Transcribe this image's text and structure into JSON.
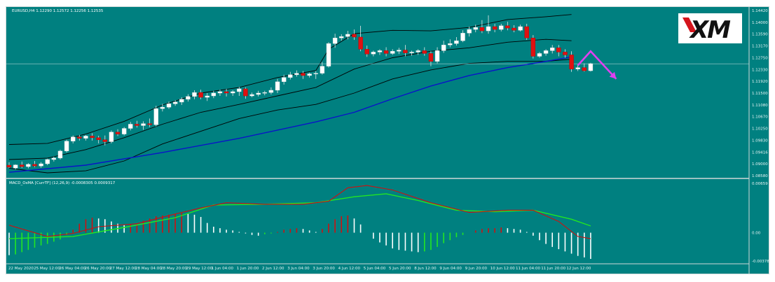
{
  "header": {
    "symbol_info": "EURUSD,H4  1.12290 1.12572 1.12256 1.12535",
    "indicator_info": "MACD_OsMA [CurrTF] (12,26,9) -0.0008305 0.0009317"
  },
  "logo": {
    "text": "XM"
  },
  "current_price": "1.12535",
  "colors": {
    "background": "#008080",
    "bull_candle": "#ffffff",
    "bear_candle": "#e01010",
    "bollinger": "#000000",
    "ma_line": "#0a14c8",
    "macd_red": "#d01010",
    "signal_green": "#22e622",
    "arrow": "#e040f0"
  },
  "chart_data": [
    {
      "type": "candlestick",
      "title": "EURUSD,H4  1.12290 1.12572 1.12256 1.12535",
      "ylim": [
        1.0858,
        1.1442
      ],
      "yticks": [
        "1.14420",
        "1.14000",
        "1.13590",
        "1.13170",
        "1.12750",
        "1.12330",
        "1.11920",
        "1.11500",
        "1.11080",
        "1.10670",
        "1.10250",
        "1.09830",
        "1.09416",
        "1.09000",
        "1.08580"
      ],
      "xticks": [
        "22 May 2020",
        "25 May 12:00",
        "26 May 04:00",
        "26 May 20:00",
        "27 May 12:00",
        "28 May 04:00",
        "28 May 20:00",
        "29 May 12:00",
        "1 Jun 04:00",
        "1 Jun 20:00",
        "2 Jun 12:00",
        "3 Jun 04:00",
        "3 Jun 20:00",
        "4 Jun 12:00",
        "5 Jun 04:00",
        "5 Jun 20:00",
        "8 Jun 12:00",
        "9 Jun 04:00",
        "9 Jun 20:00",
        "10 Jun 12:00",
        "11 Jun 04:00",
        "11 Jun 20:00",
        "12 Jun 12:00"
      ],
      "candles": [
        [
          1.0895,
          1.0905,
          1.0888,
          1.0885
        ],
        [
          1.0885,
          1.0898,
          1.0896,
          1.088
        ],
        [
          1.0896,
          1.0908,
          1.089,
          1.0885
        ],
        [
          1.089,
          1.0902,
          1.0898,
          1.0884
        ],
        [
          1.0898,
          1.091,
          1.0892,
          1.0888
        ],
        [
          1.0892,
          1.0906,
          1.09,
          1.0886
        ],
        [
          1.09,
          1.0918,
          1.0915,
          1.0895
        ],
        [
          1.0915,
          1.0925,
          1.092,
          1.0908
        ],
        [
          1.092,
          1.095,
          1.0945,
          1.0915
        ],
        [
          1.0945,
          1.0985,
          1.098,
          1.094
        ],
        [
          1.098,
          1.1,
          1.0995,
          1.0972
        ],
        [
          1.0995,
          1.1002,
          1.099,
          1.0982
        ],
        [
          1.099,
          1.1002,
          1.0998,
          1.0982
        ],
        [
          1.0998,
          1.1008,
          1.0992,
          1.0982
        ],
        [
          1.0992,
          1.0999,
          1.0985,
          1.0972
        ],
        [
          1.0985,
          1.1,
          1.0978,
          1.0965
        ],
        [
          1.0978,
          1.1018,
          1.1012,
          1.0972
        ],
        [
          1.1012,
          1.1022,
          1.1005,
          1.0998
        ],
        [
          1.1005,
          1.103,
          1.1025,
          1.1
        ],
        [
          1.1025,
          1.1048,
          1.104,
          1.1018
        ],
        [
          1.104,
          1.1052,
          1.1035,
          1.1028
        ],
        [
          1.1035,
          1.105,
          1.1042,
          1.102
        ],
        [
          1.1042,
          1.106,
          1.1038,
          1.103
        ],
        [
          1.1038,
          1.1105,
          1.1095,
          1.1032
        ],
        [
          1.1095,
          1.1112,
          1.11,
          1.1085
        ],
        [
          1.11,
          1.112,
          1.1112,
          1.1094
        ],
        [
          1.1112,
          1.1125,
          1.1118,
          1.1105
        ],
        [
          1.1118,
          1.1135,
          1.1128,
          1.1108
        ],
        [
          1.1128,
          1.1146,
          1.1138,
          1.112
        ],
        [
          1.1138,
          1.116,
          1.1152,
          1.1128
        ],
        [
          1.1152,
          1.1162,
          1.1135,
          1.1128
        ],
        [
          1.1135,
          1.115,
          1.114,
          1.1122
        ],
        [
          1.114,
          1.1158,
          1.115,
          1.1132
        ],
        [
          1.115,
          1.1162,
          1.1155,
          1.114
        ],
        [
          1.1155,
          1.1165,
          1.115,
          1.1138
        ],
        [
          1.115,
          1.116,
          1.1155,
          1.114
        ],
        [
          1.1155,
          1.1172,
          1.1165,
          1.114
        ],
        [
          1.1165,
          1.117,
          1.114,
          1.113
        ],
        [
          1.114,
          1.1152,
          1.1145,
          1.1135
        ],
        [
          1.1145,
          1.1158,
          1.115,
          1.1138
        ],
        [
          1.115,
          1.1158,
          1.1152,
          1.1142
        ],
        [
          1.1152,
          1.117,
          1.116,
          1.1145
        ],
        [
          1.116,
          1.12,
          1.119,
          1.115
        ],
        [
          1.119,
          1.1215,
          1.1205,
          1.118
        ],
        [
          1.1205,
          1.1225,
          1.1215,
          1.1198
        ],
        [
          1.1215,
          1.123,
          1.122,
          1.1208
        ],
        [
          1.122,
          1.1228,
          1.1212,
          1.12
        ],
        [
          1.1212,
          1.1222,
          1.1218,
          1.1205
        ],
        [
          1.1218,
          1.1228,
          1.122,
          1.12
        ],
        [
          1.122,
          1.126,
          1.1245,
          1.1215
        ],
        [
          1.1245,
          1.133,
          1.1325,
          1.124
        ],
        [
          1.1325,
          1.136,
          1.1345,
          1.131
        ],
        [
          1.1345,
          1.1358,
          1.135,
          1.1335
        ],
        [
          1.135,
          1.137,
          1.1358,
          1.134
        ],
        [
          1.1358,
          1.1375,
          1.1348,
          1.1338
        ],
        [
          1.1348,
          1.1388,
          1.1305,
          1.1298
        ],
        [
          1.1305,
          1.1318,
          1.1288,
          1.1278
        ],
        [
          1.1288,
          1.13,
          1.1295,
          1.128
        ],
        [
          1.1295,
          1.1305,
          1.13,
          1.1285
        ],
        [
          1.13,
          1.1312,
          1.129,
          1.128
        ],
        [
          1.129,
          1.1305,
          1.1298,
          1.1285
        ],
        [
          1.1298,
          1.131,
          1.1302,
          1.1288
        ],
        [
          1.1302,
          1.132,
          1.1292,
          1.128
        ],
        [
          1.1292,
          1.13,
          1.1295,
          1.1282
        ],
        [
          1.1295,
          1.1305,
          1.13,
          1.1285
        ],
        [
          1.13,
          1.1312,
          1.129,
          1.1282
        ],
        [
          1.129,
          1.1298,
          1.1262,
          1.1245
        ],
        [
          1.1262,
          1.1312,
          1.13,
          1.1255
        ],
        [
          1.13,
          1.1335,
          1.132,
          1.1292
        ],
        [
          1.132,
          1.134,
          1.1325,
          1.1312
        ],
        [
          1.1325,
          1.1348,
          1.1335,
          1.1318
        ],
        [
          1.1335,
          1.1372,
          1.1362,
          1.133
        ],
        [
          1.1362,
          1.1385,
          1.1375,
          1.135
        ],
        [
          1.1375,
          1.1392,
          1.1382,
          1.1365
        ],
        [
          1.1382,
          1.1408,
          1.137,
          1.1362
        ],
        [
          1.137,
          1.1425,
          1.1385,
          1.136
        ],
        [
          1.1385,
          1.1395,
          1.1375,
          1.1365
        ],
        [
          1.1375,
          1.1395,
          1.1388,
          1.1368
        ],
        [
          1.1388,
          1.1402,
          1.138,
          1.1372
        ],
        [
          1.138,
          1.139,
          1.1372,
          1.1365
        ],
        [
          1.1372,
          1.1392,
          1.1385,
          1.1368
        ],
        [
          1.1385,
          1.1395,
          1.1345,
          1.1338
        ],
        [
          1.1345,
          1.1355,
          1.128,
          1.1272
        ],
        [
          1.128,
          1.1295,
          1.129,
          1.1275
        ],
        [
          1.129,
          1.1305,
          1.13,
          1.1282
        ],
        [
          1.13,
          1.132,
          1.131,
          1.129
        ],
        [
          1.131,
          1.132,
          1.1295,
          1.128
        ],
        [
          1.1295,
          1.1305,
          1.1285,
          1.1275
        ],
        [
          1.1285,
          1.1298,
          1.1235,
          1.1225
        ],
        [
          1.1235,
          1.125,
          1.124,
          1.1228
        ],
        [
          1.124,
          1.1255,
          1.1229,
          1.1226
        ],
        [
          1.1229,
          1.1257,
          1.1254,
          1.1226
        ]
      ],
      "bollinger_upper": [
        [
          0,
          1.0968
        ],
        [
          6,
          1.0972
        ],
        [
          12,
          1.1005
        ],
        [
          18,
          1.105
        ],
        [
          24,
          1.1108
        ],
        [
          30,
          1.115
        ],
        [
          36,
          1.117
        ],
        [
          42,
          1.1205
        ],
        [
          48,
          1.123
        ],
        [
          50,
          1.1305
        ],
        [
          54,
          1.136
        ],
        [
          60,
          1.1372
        ],
        [
          66,
          1.137
        ],
        [
          72,
          1.1382
        ],
        [
          78,
          1.141
        ],
        [
          84,
          1.142
        ],
        [
          88,
          1.1428
        ]
      ],
      "bollinger_middle": [
        [
          0,
          1.0915
        ],
        [
          6,
          1.092
        ],
        [
          12,
          1.095
        ],
        [
          18,
          1.0992
        ],
        [
          24,
          1.104
        ],
        [
          30,
          1.1082
        ],
        [
          36,
          1.111
        ],
        [
          42,
          1.114
        ],
        [
          48,
          1.117
        ],
        [
          54,
          1.1235
        ],
        [
          60,
          1.1275
        ],
        [
          66,
          1.1298
        ],
        [
          72,
          1.131
        ],
        [
          78,
          1.133
        ],
        [
          84,
          1.134
        ],
        [
          88,
          1.1335
        ]
      ],
      "bollinger_lower": [
        [
          0,
          1.0884
        ],
        [
          6,
          1.0868
        ],
        [
          12,
          1.0875
        ],
        [
          18,
          1.091
        ],
        [
          24,
          1.097
        ],
        [
          30,
          1.1015
        ],
        [
          36,
          1.106
        ],
        [
          42,
          1.109
        ],
        [
          48,
          1.111
        ],
        [
          54,
          1.115
        ],
        [
          60,
          1.12
        ],
        [
          66,
          1.1232
        ],
        [
          72,
          1.1255
        ],
        [
          78,
          1.1262
        ],
        [
          84,
          1.1262
        ],
        [
          88,
          1.127
        ]
      ],
      "moving_average": [
        [
          0,
          1.087
        ],
        [
          12,
          1.0895
        ],
        [
          24,
          1.094
        ],
        [
          36,
          1.099
        ],
        [
          48,
          1.1048
        ],
        [
          54,
          1.1082
        ],
        [
          60,
          1.113
        ],
        [
          66,
          1.1175
        ],
        [
          72,
          1.1212
        ],
        [
          78,
          1.124
        ],
        [
          84,
          1.1262
        ],
        [
          88,
          1.1278
        ]
      ],
      "forecast_arrow": [
        [
          89,
          1.1248
        ],
        [
          91,
          1.1298
        ],
        [
          95,
          1.12
        ]
      ]
    },
    {
      "type": "histogram+line",
      "title": "MACD_OsMA [CurrTF] (12,26,9) -0.0008305 0.0009317",
      "ylim": [
        -0.00378,
        0.00659
      ],
      "yticks": [
        "0.00659",
        "0.00",
        "-0.00378"
      ],
      "histogram": [
        -0.003,
        -0.0029,
        -0.0026,
        -0.0023,
        -0.002,
        -0.0017,
        -0.0015,
        -0.0012,
        -0.0009,
        -0.0003,
        0.0004,
        0.0012,
        0.0018,
        0.002,
        0.0019,
        0.0018,
        0.0015,
        0.0012,
        0.001,
        0.0011,
        0.0012,
        0.0016,
        0.0019,
        0.0022,
        0.0023,
        0.0024,
        0.0025,
        0.0026,
        0.0025,
        0.0024,
        0.0021,
        0.0013,
        0.0008,
        0.0006,
        0.0004,
        0.0003,
        0.0001,
        -0.0001,
        -0.0003,
        -0.0004,
        -0.0002,
        -0.0001,
        0.0001,
        0.0004,
        0.0005,
        0.0006,
        0.0005,
        0.0003,
        0.0001,
        0.0005,
        0.0012,
        0.0018,
        0.0022,
        0.0023,
        0.0019,
        0.0011,
        0.0,
        -0.0008,
        -0.0013,
        -0.0017,
        -0.0021,
        -0.0023,
        -0.0024,
        -0.0025,
        -0.0026,
        -0.0025,
        -0.0023,
        -0.0019,
        -0.0014,
        -0.001,
        -0.0006,
        -0.0003,
        0.0,
        0.0003,
        0.0005,
        0.0006,
        0.0006,
        0.0007,
        0.0006,
        0.0005,
        0.0004,
        0.0001,
        -0.0004,
        -0.001,
        -0.0015,
        -0.0019,
        -0.0022,
        -0.0025,
        -0.0028,
        -0.0031,
        -0.0033,
        -0.0035
      ],
      "macd_line": [
        [
          0,
          0.001
        ],
        [
          6,
          -0.0005
        ],
        [
          10,
          -0.0001
        ],
        [
          14,
          0.0008
        ],
        [
          20,
          0.0012
        ],
        [
          26,
          0.0025
        ],
        [
          30,
          0.0033
        ],
        [
          34,
          0.004
        ],
        [
          40,
          0.0038
        ],
        [
          46,
          0.0038
        ],
        [
          50,
          0.0042
        ],
        [
          53,
          0.006
        ],
        [
          56,
          0.0063
        ],
        [
          60,
          0.0057
        ],
        [
          66,
          0.004
        ],
        [
          72,
          0.0027
        ],
        [
          78,
          0.003
        ],
        [
          82,
          0.003
        ],
        [
          86,
          0.0015
        ],
        [
          89,
          -0.0005
        ],
        [
          91,
          -0.0008
        ]
      ],
      "signal_line": [
        [
          0,
          -0.0008
        ],
        [
          10,
          -0.0005
        ],
        [
          18,
          0.0007
        ],
        [
          26,
          0.002
        ],
        [
          32,
          0.0037
        ],
        [
          40,
          0.0038
        ],
        [
          48,
          0.004
        ],
        [
          54,
          0.0048
        ],
        [
          59,
          0.0052
        ],
        [
          64,
          0.0043
        ],
        [
          70,
          0.003
        ],
        [
          76,
          0.0028
        ],
        [
          82,
          0.003
        ],
        [
          88,
          0.0018
        ],
        [
          91,
          0.0009
        ]
      ]
    }
  ]
}
